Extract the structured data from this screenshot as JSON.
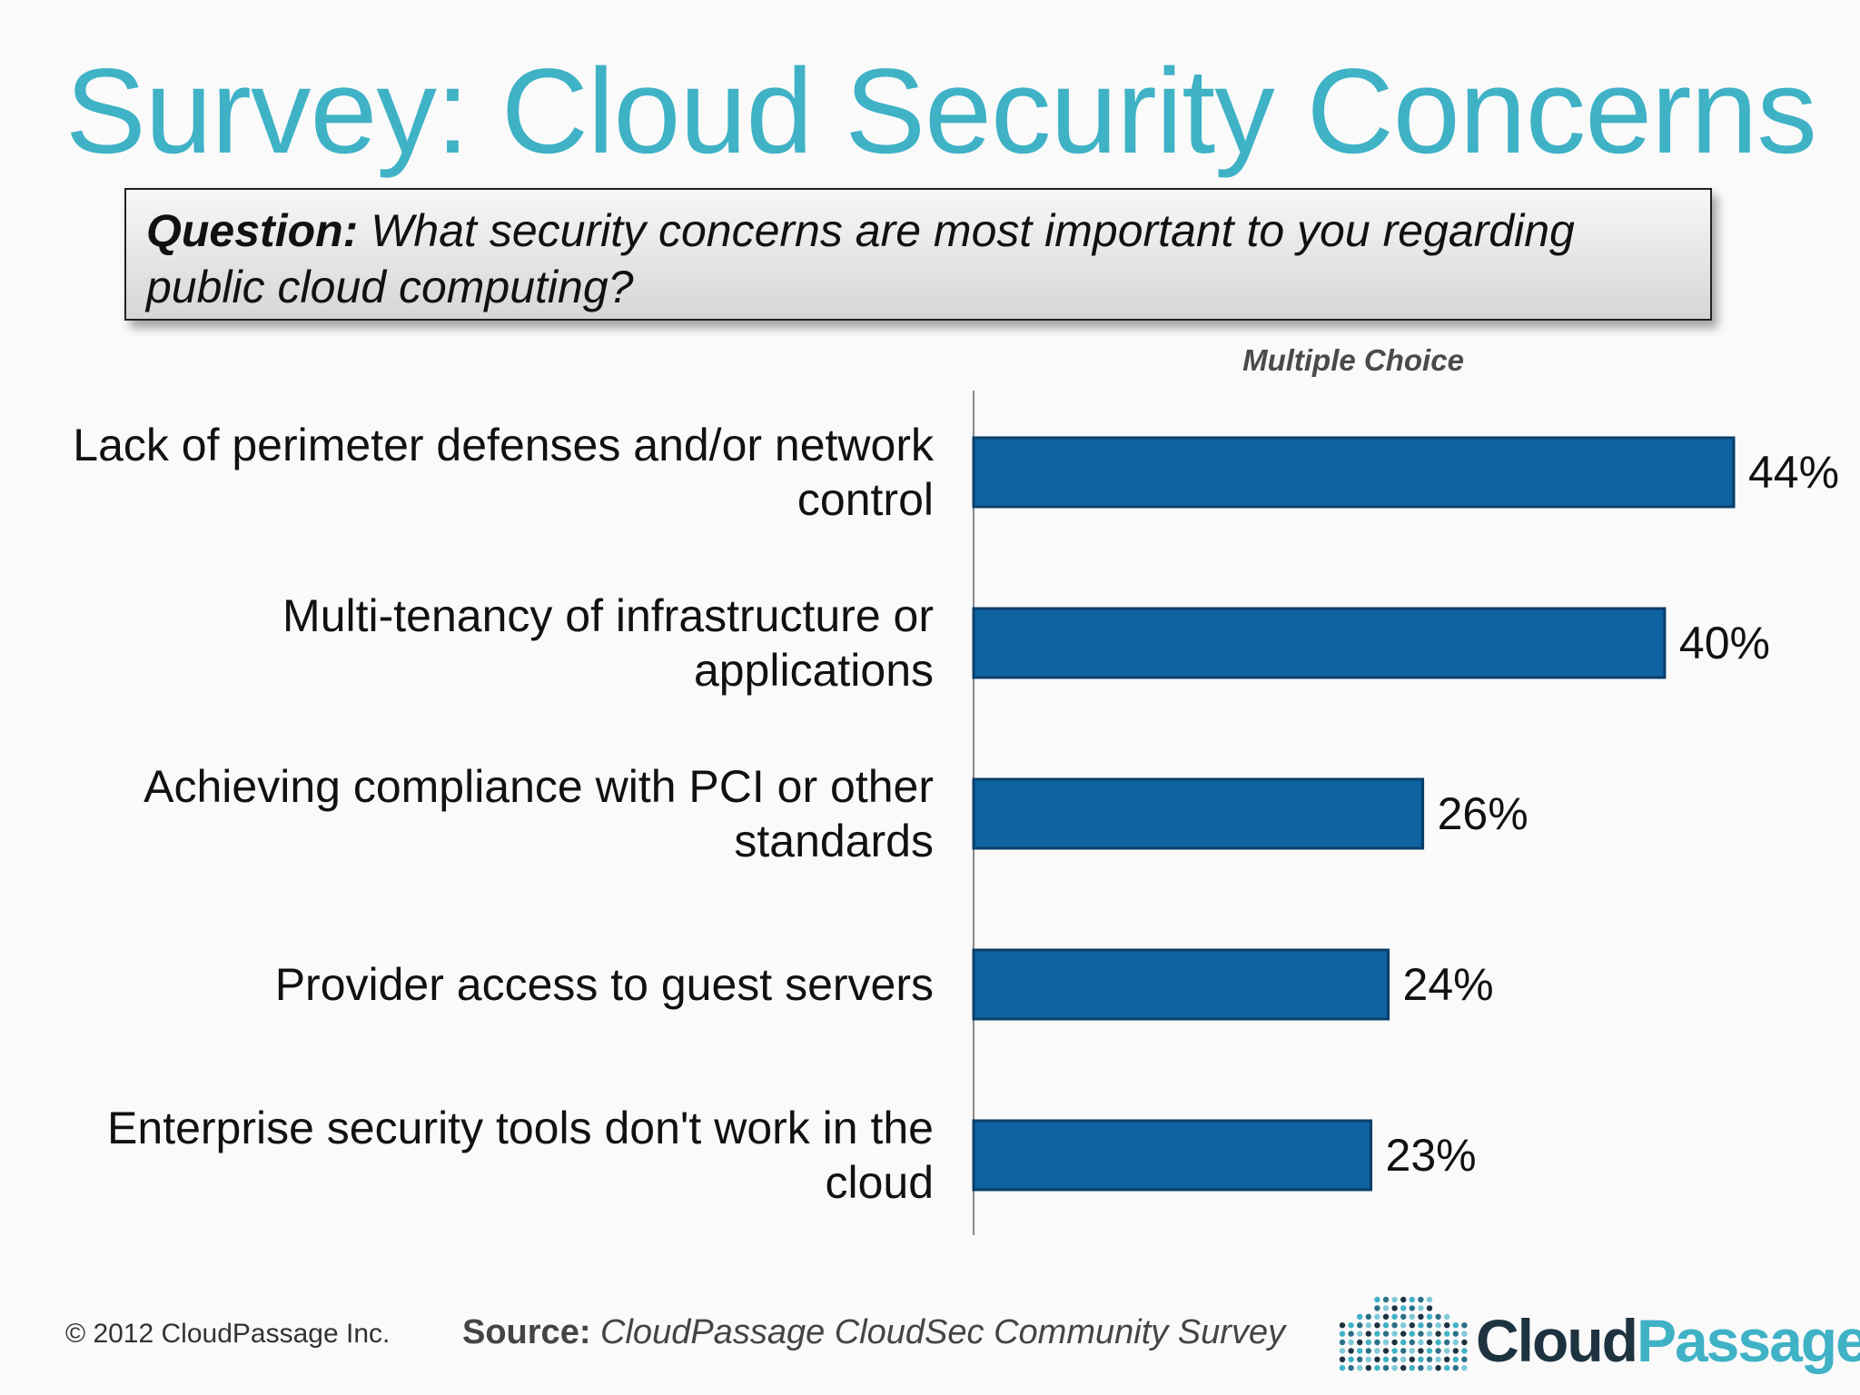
{
  "title": "Survey: Cloud Security Concerns",
  "question": {
    "label": "Question:",
    "text": "What security concerns are most important to you regarding public cloud computing?"
  },
  "colors": {
    "title": "#3fb2c6",
    "bar": "#0f63a1",
    "bar_border": "#0a3f6a",
    "axis": "#888888"
  },
  "chart_data": {
    "type": "bar",
    "orientation": "horizontal",
    "subtitle": "Multiple Choice",
    "categories": [
      [
        "Lack of perimeter defenses and/or network",
        "control"
      ],
      [
        "Multi-tenancy of infrastructure or",
        "applications"
      ],
      [
        "Achieving compliance with PCI or other",
        "standards"
      ],
      [
        "Provider access to guest servers"
      ],
      [
        "Enterprise security tools don't work in the",
        "cloud"
      ]
    ],
    "values": [
      44,
      40,
      26,
      24,
      23
    ],
    "value_labels": [
      "44%",
      "40%",
      "26%",
      "24%",
      "23%"
    ],
    "xlim": [
      0,
      50
    ],
    "grid": false,
    "legend": "none"
  },
  "footer": {
    "copyright": "© 2012 CloudPassage Inc.",
    "source_label": "Source:",
    "source_text": "CloudPassage CloudSec Community Survey"
  },
  "logo": {
    "word1": "Cloud",
    "word2": "Passage",
    "icon": "cloud-dots-icon"
  }
}
